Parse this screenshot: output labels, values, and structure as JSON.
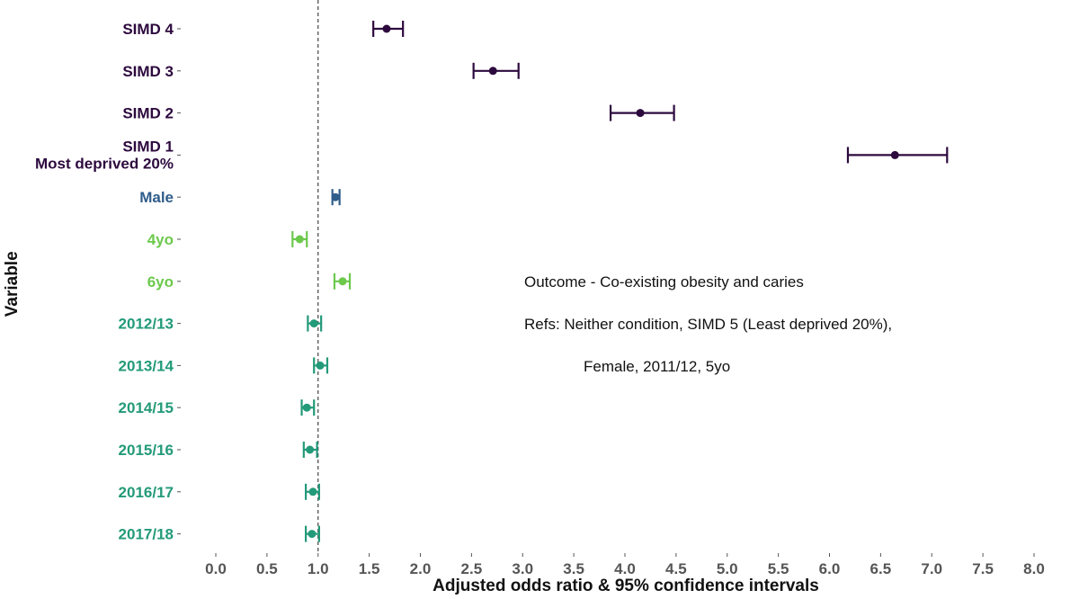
{
  "chart_data": {
    "type": "forest",
    "xlabel": "Adjusted odds ratio & 95% confidence intervals",
    "ylabel": "Variable",
    "xlim": [
      0,
      8
    ],
    "xticks": [
      "0.0",
      "0.5",
      "1.0",
      "1.5",
      "2.0",
      "2.5",
      "3.0",
      "3.5",
      "4.0",
      "4.5",
      "5.0",
      "5.5",
      "6.0",
      "6.5",
      "7.0",
      "7.5",
      "8.0"
    ],
    "reference_line": 1.0,
    "grid": false,
    "rows": [
      {
        "label": [
          "SIMD 4"
        ],
        "or": 1.67,
        "lo": 1.54,
        "hi": 1.83,
        "color": "#2d0a3e"
      },
      {
        "label": [
          "SIMD 3"
        ],
        "or": 2.71,
        "lo": 2.52,
        "hi": 2.96,
        "color": "#2d0a3e"
      },
      {
        "label": [
          "SIMD 2"
        ],
        "or": 4.15,
        "lo": 3.86,
        "hi": 4.48,
        "color": "#2d0a3e"
      },
      {
        "label": [
          "SIMD 1",
          "Most deprived 20%"
        ],
        "or": 6.64,
        "lo": 6.18,
        "hi": 7.15,
        "color": "#2d0a3e"
      },
      {
        "label": [
          "Male"
        ],
        "or": 1.17,
        "lo": 1.14,
        "hi": 1.21,
        "color": "#2f5c8a"
      },
      {
        "label": [
          "4yo"
        ],
        "or": 0.82,
        "lo": 0.75,
        "hi": 0.89,
        "color": "#6cc94c"
      },
      {
        "label": [
          "6yo"
        ],
        "or": 1.24,
        "lo": 1.16,
        "hi": 1.31,
        "color": "#6cc94c"
      },
      {
        "label": [
          "2012/13"
        ],
        "or": 0.96,
        "lo": 0.9,
        "hi": 1.03,
        "color": "#239a79"
      },
      {
        "label": [
          "2013/14"
        ],
        "or": 1.02,
        "lo": 0.96,
        "hi": 1.09,
        "color": "#239a79"
      },
      {
        "label": [
          "2014/15"
        ],
        "or": 0.89,
        "lo": 0.84,
        "hi": 0.96,
        "color": "#239a79"
      },
      {
        "label": [
          "2015/16"
        ],
        "or": 0.92,
        "lo": 0.86,
        "hi": 0.99,
        "color": "#239a79"
      },
      {
        "label": [
          "2016/17"
        ],
        "or": 0.95,
        "lo": 0.88,
        "hi": 1.01,
        "color": "#239a79"
      },
      {
        "label": [
          "2017/18"
        ],
        "or": 0.94,
        "lo": 0.88,
        "hi": 1.01,
        "color": "#239a79"
      }
    ],
    "annotations": [
      "Outcome - Co-existing obesity and caries",
      "Refs: Neither condition, SIMD 5 (Least deprived 20%),",
      "Female, 2011/12, 5yo"
    ]
  }
}
